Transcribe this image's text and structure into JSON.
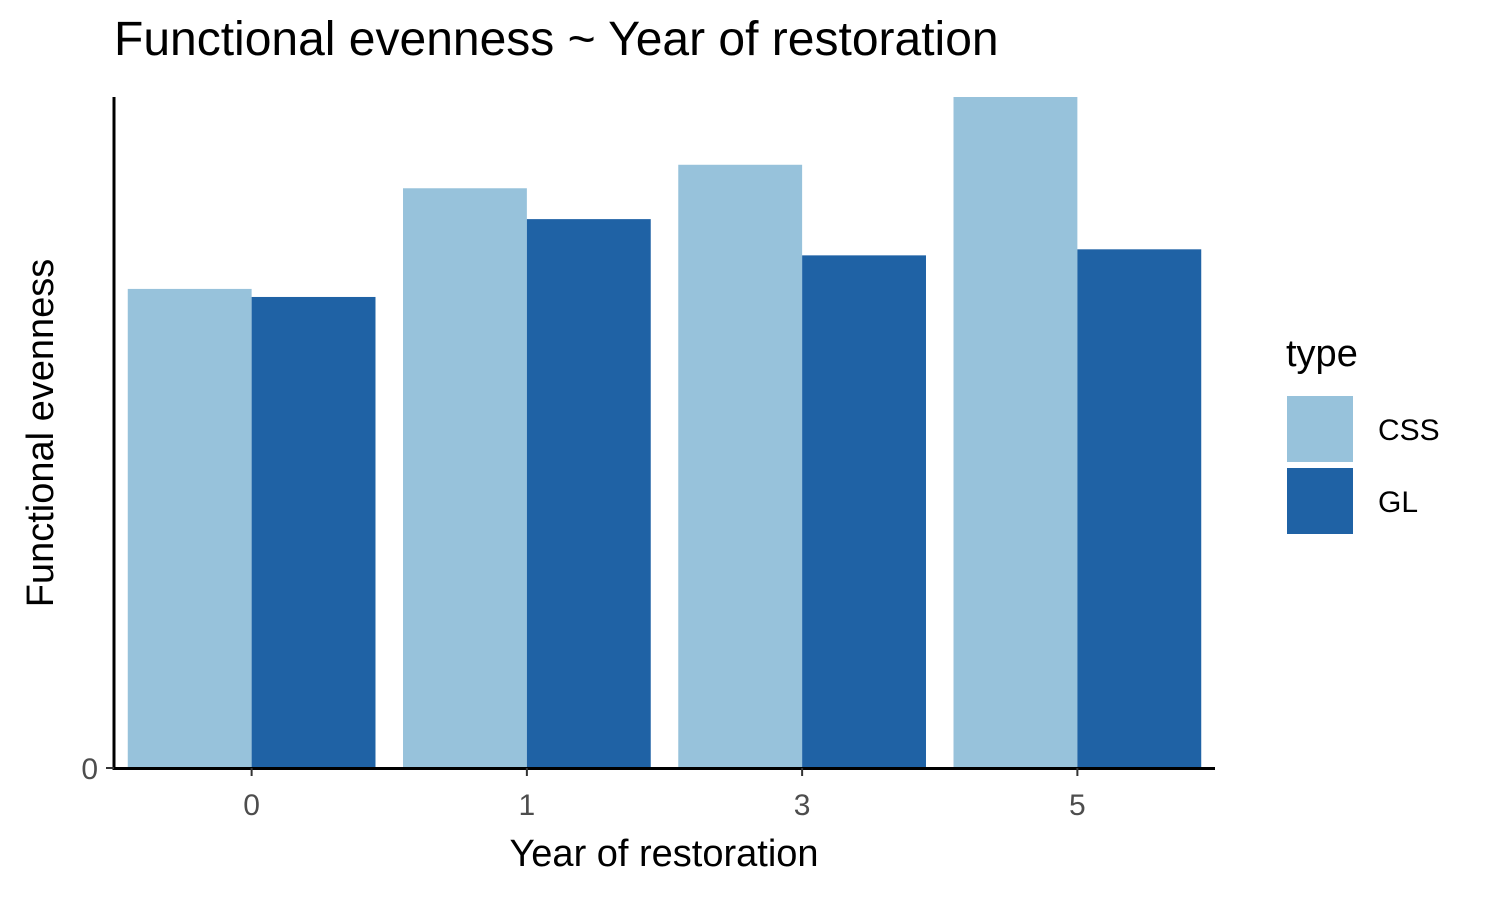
{
  "chart_data": {
    "type": "bar",
    "title": "Functional evenness ~ Year of restoration",
    "xlabel": "Year of restoration",
    "ylabel": "Functional evenness",
    "categories": [
      "0",
      "1",
      "3",
      "5"
    ],
    "y_tick_labels": [
      "0"
    ],
    "ylim": [
      0,
      1.0
    ],
    "grid": false,
    "legend": {
      "title": "type",
      "placement": "right"
    },
    "series": [
      {
        "name": "CSS",
        "color": "#97C2DB",
        "values": [
          0.714,
          0.864,
          0.899,
          1.0
        ]
      },
      {
        "name": "GL",
        "color": "#1F62A5",
        "values": [
          0.702,
          0.818,
          0.764,
          0.773
        ]
      }
    ]
  }
}
